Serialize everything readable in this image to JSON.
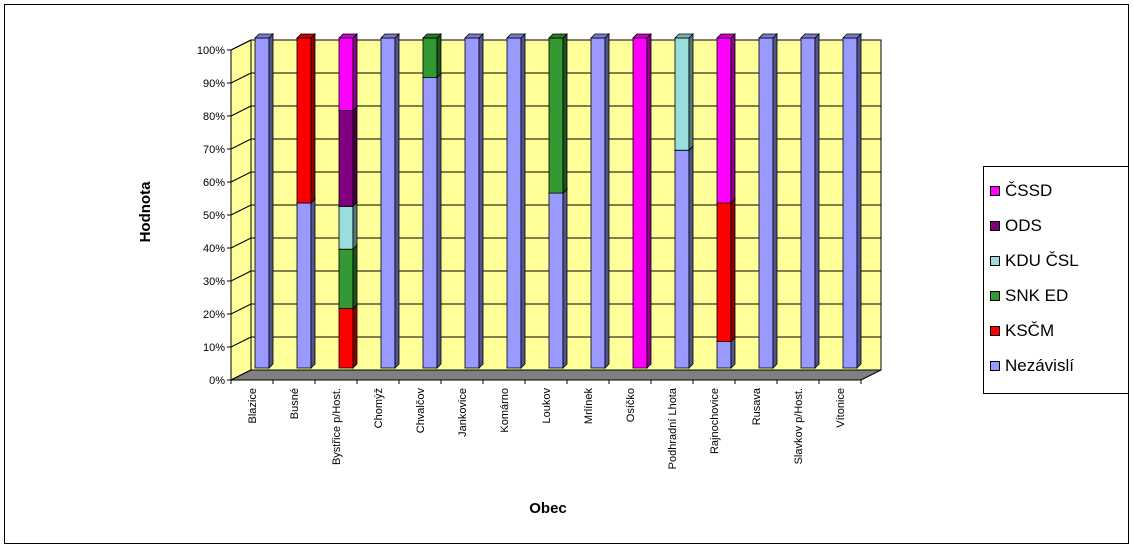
{
  "chart_data": {
    "type": "bar",
    "stacked": "percent",
    "xlabel": "Obec",
    "ylabel": "Hodnota",
    "ylim": [
      0,
      100
    ],
    "y_ticks": [
      "0%",
      "10%",
      "20%",
      "30%",
      "40%",
      "50%",
      "60%",
      "70%",
      "80%",
      "90%",
      "100%"
    ],
    "categories": [
      "Blazice",
      "Busné",
      "Bystřice p/Host.",
      "Chomýž",
      "Chvalčov",
      "Jankovice",
      "Komárno",
      "Loukov",
      "Mrlínek",
      "Osíčko",
      "Podhradní Lhota",
      "Rajnochovice",
      "Rusava",
      "Slavkov p/Host.",
      "Vítonice"
    ],
    "series": [
      {
        "name": "Nezávislí",
        "color": "#9999ff",
        "values": [
          100,
          50,
          0,
          100,
          88,
          100,
          100,
          53,
          100,
          0,
          66,
          8,
          100,
          100,
          100
        ]
      },
      {
        "name": "KSČM",
        "color": "#ff0000",
        "values": [
          0,
          50,
          18,
          0,
          0,
          0,
          0,
          0,
          0,
          0,
          0,
          42,
          0,
          0,
          0
        ]
      },
      {
        "name": "SNK ED",
        "color": "#339933",
        "values": [
          0,
          0,
          18,
          0,
          12,
          0,
          0,
          47,
          0,
          0,
          0,
          0,
          0,
          0,
          0
        ]
      },
      {
        "name": "KDU ČSL",
        "color": "#99dddd",
        "values": [
          0,
          0,
          13,
          0,
          0,
          0,
          0,
          0,
          0,
          0,
          34,
          0,
          0,
          0,
          0
        ]
      },
      {
        "name": "ODS",
        "color": "#800080",
        "values": [
          0,
          0,
          29,
          0,
          0,
          0,
          0,
          0,
          0,
          0,
          0,
          0,
          0,
          0,
          0
        ]
      },
      {
        "name": "ČSSD",
        "color": "#ff00ff",
        "values": [
          0,
          0,
          22,
          0,
          0,
          0,
          0,
          0,
          0,
          100,
          0,
          50,
          0,
          0,
          0
        ]
      }
    ],
    "legend_order": [
      "ČSSD",
      "ODS",
      "KDU ČSL",
      "SNK ED",
      "KSČM",
      "Nezávislí"
    ],
    "legend_position": "right",
    "grid": true,
    "plot_background": "#ffff99",
    "floor_color": "#808080"
  }
}
